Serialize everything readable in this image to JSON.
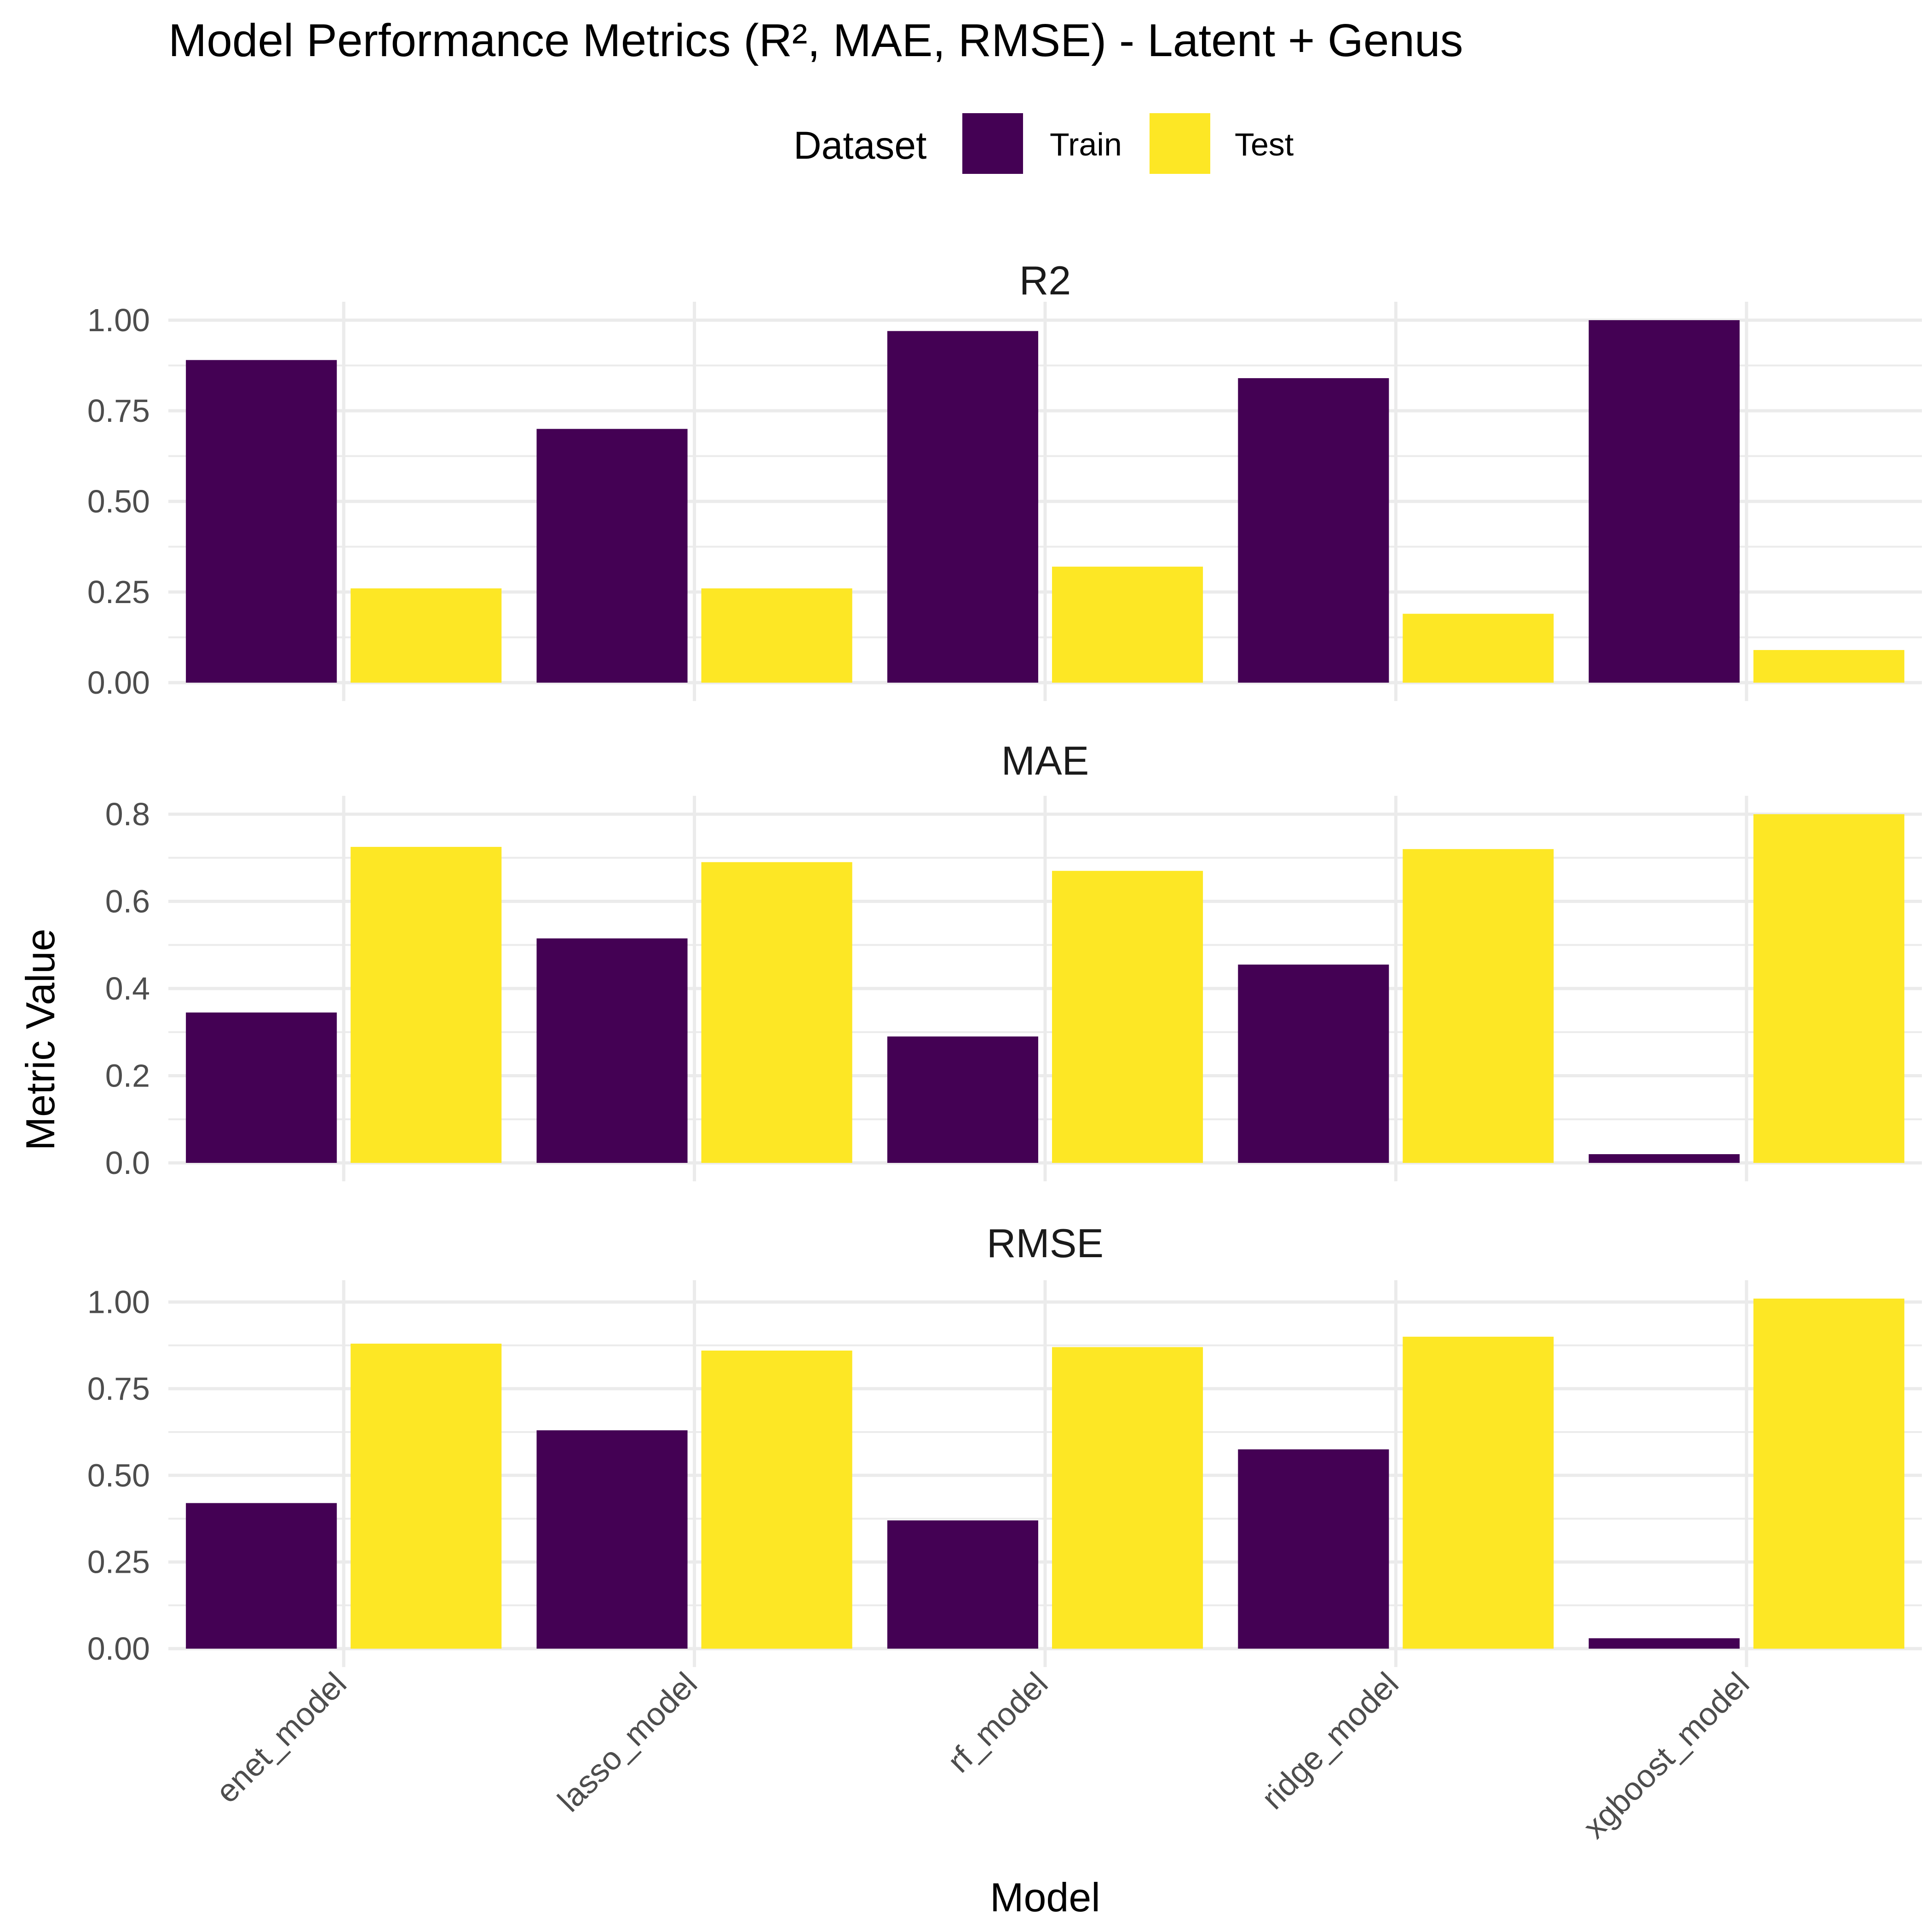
{
  "title": "Model Performance Metrics (R², MAE, RMSE) - Latent + Genus",
  "legend": {
    "title": "Dataset",
    "position": "top",
    "items": [
      {
        "label": "Train",
        "color": "#440154"
      },
      {
        "label": "Test",
        "color": "#FDE725"
      }
    ]
  },
  "xlabel": "Model",
  "ylabel": "Metric Value",
  "chart_data": {
    "type": "bar",
    "facets": "rows (free y scales)",
    "categories": [
      "enet_model",
      "lasso_model",
      "rf_model",
      "ridge_model",
      "xgboost_model"
    ],
    "panels": [
      {
        "name": "R2",
        "ylim": [
          0,
          1.0
        ],
        "ticks": [
          0,
          0.25,
          0.5,
          0.75,
          1.0
        ],
        "tick_labels": [
          "0.00",
          "0.25",
          "0.50",
          "0.75",
          "1.00"
        ],
        "series": [
          {
            "name": "Train",
            "values": [
              0.89,
              0.7,
              0.97,
              0.84,
              1.0
            ]
          },
          {
            "name": "Test",
            "values": [
              0.26,
              0.26,
              0.32,
              0.19,
              0.09
            ]
          }
        ]
      },
      {
        "name": "MAE",
        "ylim": [
          0,
          0.8
        ],
        "ticks": [
          0,
          0.2,
          0.4,
          0.6,
          0.8
        ],
        "tick_labels": [
          "0.0",
          "0.2",
          "0.4",
          "0.6",
          "0.8"
        ],
        "series": [
          {
            "name": "Train",
            "values": [
              0.345,
              0.515,
              0.29,
              0.455,
              0.02
            ]
          },
          {
            "name": "Test",
            "values": [
              0.725,
              0.69,
              0.67,
              0.72,
              0.8
            ]
          }
        ]
      },
      {
        "name": "RMSE",
        "ylim": [
          0,
          1.01
        ],
        "ticks": [
          0,
          0.25,
          0.5,
          0.75,
          1.0
        ],
        "tick_labels": [
          "0.00",
          "0.25",
          "0.50",
          "0.75",
          "1.00"
        ],
        "series": [
          {
            "name": "Train",
            "values": [
              0.42,
              0.63,
              0.37,
              0.575,
              0.03
            ]
          },
          {
            "name": "Test",
            "values": [
              0.88,
              0.86,
              0.87,
              0.9,
              1.01
            ]
          }
        ]
      }
    ],
    "grid": true,
    "theme": "minimal"
  }
}
